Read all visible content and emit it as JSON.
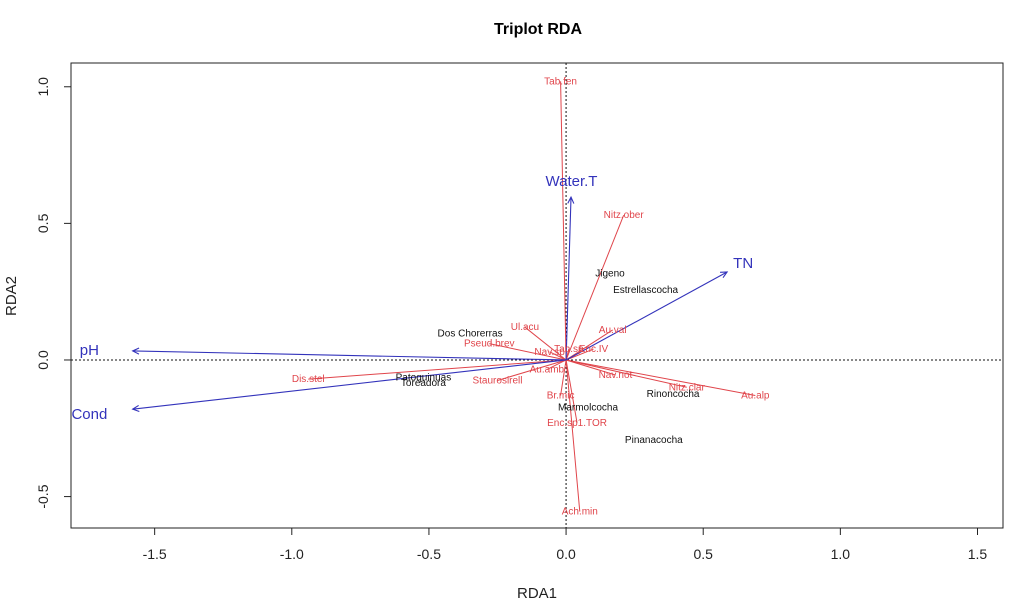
{
  "chart_data": {
    "type": "scatter",
    "subtype": "rda-triplot",
    "title": "Triplot RDA",
    "xlabel": "RDA1",
    "ylabel": "RDA2",
    "xlim": [
      -1.805,
      1.593
    ],
    "ylim": [
      -0.615,
      1.087
    ],
    "xticks": [
      -1.5,
      -1.0,
      -0.5,
      0.0,
      0.5,
      1.0,
      1.5
    ],
    "xtick_labels": [
      "-1.5",
      "-1.0",
      "-0.5",
      "0.0",
      "0.5",
      "1.0",
      "1.5"
    ],
    "yticks": [
      -0.5,
      0.0,
      0.5,
      1.0
    ],
    "ytick_labels": [
      "-0.5",
      "0.0",
      "0.5",
      "1.0"
    ],
    "zero_lines": true,
    "grid": false,
    "colors": {
      "environment": "#3333bb",
      "species": "#e0454b",
      "sites": "#111111"
    },
    "environment_arrows": [
      {
        "name": "pH",
        "x": -1.58,
        "y": 0.033
      },
      {
        "name": "Cond",
        "x": -1.58,
        "y": -0.18
      },
      {
        "name": "Water.T",
        "x": 0.018,
        "y": 0.596
      },
      {
        "name": "TN",
        "x": 0.587,
        "y": 0.322
      }
    ],
    "species": [
      {
        "name": "Tab.fen",
        "x": -0.02,
        "y": 1.02
      },
      {
        "name": "Nitz.ober",
        "x": 0.21,
        "y": 0.53
      },
      {
        "name": "Ul.acu",
        "x": -0.15,
        "y": 0.12
      },
      {
        "name": "Pseud.brev",
        "x": -0.28,
        "y": 0.06
      },
      {
        "name": "Au.val",
        "x": 0.17,
        "y": 0.11
      },
      {
        "name": "Nav.sp",
        "x": -0.06,
        "y": 0.03
      },
      {
        "name": "Tab.sp",
        "x": 0.01,
        "y": 0.04
      },
      {
        "name": "Enc.IV",
        "x": 0.1,
        "y": 0.04
      },
      {
        "name": "Au.amb",
        "x": -0.07,
        "y": -0.035
      },
      {
        "name": "Staurosirell",
        "x": -0.25,
        "y": -0.075
      },
      {
        "name": "Dis.stel",
        "x": -0.94,
        "y": -0.07
      },
      {
        "name": "Nav.not",
        "x": 0.18,
        "y": -0.055
      },
      {
        "name": "Nitz.clar",
        "x": 0.44,
        "y": -0.1
      },
      {
        "name": "Au.alp",
        "x": 0.69,
        "y": -0.13
      },
      {
        "name": "Br.mic",
        "x": -0.02,
        "y": -0.13
      },
      {
        "name": "Enc.sp1.TOR",
        "x": 0.04,
        "y": -0.23
      },
      {
        "name": "Ach.min",
        "x": 0.05,
        "y": -0.555
      }
    ],
    "sites": [
      {
        "name": "Jigeno",
        "x": 0.16,
        "y": 0.32
      },
      {
        "name": "Estrellascocha",
        "x": 0.29,
        "y": 0.26
      },
      {
        "name": "Dos Chorerras",
        "x": -0.35,
        "y": 0.1
      },
      {
        "name": "Patoquinuas",
        "x": -0.52,
        "y": -0.06
      },
      {
        "name": "Toreadora",
        "x": -0.52,
        "y": -0.08
      },
      {
        "name": "Rinoncocha",
        "x": 0.39,
        "y": -0.12
      },
      {
        "name": "Marmolcocha",
        "x": 0.08,
        "y": -0.17
      },
      {
        "name": "Pinanacocha",
        "x": 0.32,
        "y": -0.29
      }
    ]
  }
}
